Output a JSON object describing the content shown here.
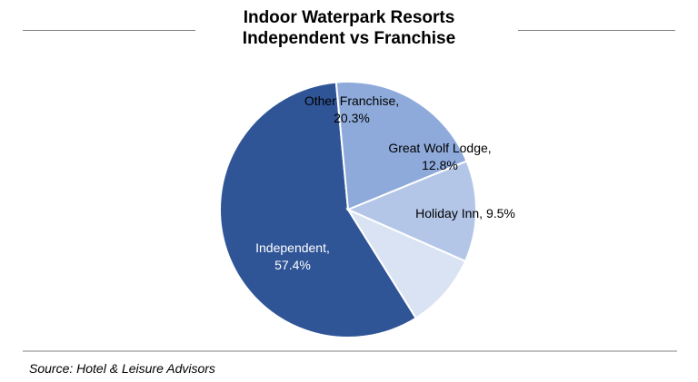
{
  "chart_data": {
    "type": "pie",
    "title": [
      "Indoor Waterpark Resorts",
      "Independent vs Franchise"
    ],
    "slices": [
      {
        "label": "Independent",
        "value": 57.4,
        "display": "57.4%",
        "color": "#2f5597"
      },
      {
        "label": "Other Franchise",
        "value": 20.3,
        "display": "20.3%",
        "color": "#8eaadb"
      },
      {
        "label": "Great Wolf Lodge",
        "value": 12.8,
        "display": "12.8%",
        "color": "#b4c6e7"
      },
      {
        "label": "Holiday Inn",
        "value": 9.5,
        "display": "9.5%",
        "color": "#dae3f3"
      }
    ],
    "label_text": {
      "Independent": [
        "Independent,",
        "57.4%"
      ],
      "Other Franchise": [
        "Other Franchise,",
        "20.3%"
      ],
      "Great Wolf Lodge": [
        "Great Wolf Lodge,",
        "12.8%"
      ],
      "Holiday Inn": [
        "Holiday Inn, 9.5%"
      ]
    },
    "label_color": {
      "Independent": "#ffffff",
      "Other Franchise": "#000000",
      "Great Wolf Lodge": "#000000",
      "Holiday Inn": "#000000"
    },
    "legend": "none"
  },
  "source": "Source: Hotel & Leisure Advisors"
}
